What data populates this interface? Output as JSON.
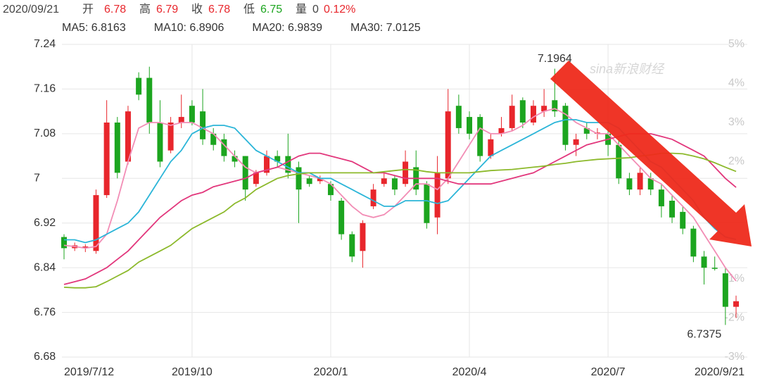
{
  "header": [
    "2020/09/21",
    "开",
    "6.78",
    "高",
    "6.79",
    "收",
    "6.78",
    "低",
    "6.75",
    "量",
    "0",
    "0.12%"
  ],
  "chart_data": {
    "type": "candlestick",
    "watermark": "sina新浪财经",
    "categories": [
      "2019/7/12",
      null,
      null,
      null,
      null,
      null,
      null,
      null,
      null,
      null,
      null,
      null,
      "2019/10",
      null,
      null,
      null,
      null,
      null,
      null,
      null,
      null,
      null,
      null,
      null,
      null,
      "2020/1",
      null,
      null,
      null,
      null,
      null,
      null,
      null,
      null,
      null,
      null,
      null,
      null,
      "2020/4",
      null,
      null,
      null,
      null,
      null,
      null,
      null,
      null,
      null,
      null,
      null,
      null,
      "2020/7",
      null,
      null,
      null,
      null,
      null,
      null,
      null,
      null,
      null,
      null,
      null,
      "2020/9/21"
    ],
    "open": [
      6.895,
      6.875,
      6.875,
      6.87,
      6.97,
      7.1,
      7.03,
      7.18,
      7.18,
      7.1,
      7.05,
      7.1,
      7.13,
      7.12,
      7.08,
      7.07,
      7.04,
      7.04,
      6.99,
      7.01,
      7.04,
      7.04,
      7.02,
      7.0,
      6.995,
      6.99,
      6.96,
      6.9,
      6.87,
      6.95,
      6.99,
      7.0,
      6.99,
      7.02,
      6.99,
      6.93,
      7.0,
      7.13,
      7.11,
      7.11,
      7.04,
      7.08,
      7.09,
      7.14,
      7.1,
      7.12,
      7.14,
      7.13,
      7.06,
      7.09,
      7.08,
      7.08,
      7.06,
      7.0,
      6.98,
      7.0,
      6.98,
      6.96,
      6.94,
      6.91,
      6.86,
      6.84,
      6.83,
      6.77
    ],
    "high": [
      6.9,
      6.885,
      6.882,
      6.98,
      7.14,
      7.11,
      7.13,
      7.19,
      7.2,
      7.14,
      7.11,
      7.15,
      7.14,
      7.16,
      7.09,
      7.08,
      7.05,
      7.04,
      7.015,
      7.05,
      7.05,
      7.08,
      7.03,
      7.005,
      7.005,
      6.995,
      6.965,
      6.905,
      6.925,
      6.99,
      7.01,
      7.005,
      7.05,
      7.05,
      6.995,
      7.04,
      7.16,
      7.15,
      7.12,
      7.115,
      7.08,
      7.11,
      7.15,
      7.145,
      7.14,
      7.16,
      7.1964,
      7.135,
      7.08,
      7.1,
      7.09,
      7.09,
      7.07,
      7.01,
      7.02,
      7.01,
      6.99,
      6.97,
      6.95,
      6.915,
      6.87,
      6.86,
      6.84,
      6.79
    ],
    "low": [
      6.855,
      6.87,
      6.868,
      6.865,
      6.965,
      7.0,
      7.025,
      7.14,
      7.08,
      7.02,
      7.045,
      7.09,
      7.095,
      7.06,
      7.05,
      7.03,
      7.02,
      6.96,
      6.985,
      7.005,
      7.02,
      7.0,
      6.92,
      6.985,
      6.99,
      6.96,
      6.89,
      6.85,
      6.84,
      6.945,
      6.985,
      6.97,
      6.985,
      6.97,
      6.91,
      6.9,
      6.99,
      7.08,
      7.07,
      7.03,
      7.035,
      7.075,
      7.085,
      7.09,
      7.095,
      7.11,
      7.11,
      7.05,
      7.04,
      7.07,
      7.07,
      7.04,
      6.99,
      6.97,
      6.97,
      6.97,
      6.93,
      6.92,
      6.9,
      6.85,
      6.81,
      6.835,
      6.7375,
      6.75
    ],
    "close": [
      6.875,
      6.88,
      6.878,
      6.97,
      7.1,
      7.01,
      7.12,
      7.15,
      7.1,
      7.03,
      7.1,
      7.11,
      7.1,
      7.07,
      7.06,
      7.04,
      7.03,
      6.98,
      7.01,
      7.04,
      7.03,
      7.01,
      6.98,
      6.99,
      7.0,
      6.97,
      6.9,
      6.86,
      6.92,
      6.98,
      7.0,
      6.98,
      7.03,
      6.98,
      6.92,
      7.01,
      7.12,
      7.09,
      7.08,
      7.04,
      7.07,
      7.09,
      7.13,
      7.1,
      7.13,
      7.13,
      7.12,
      7.06,
      7.07,
      7.08,
      7.082,
      7.06,
      7.0,
      6.98,
      7.01,
      6.98,
      6.95,
      6.93,
      6.91,
      6.86,
      6.84,
      6.838,
      6.77,
      6.78
    ],
    "up_color": "#e8262c",
    "down_color": "#1ca51f",
    "series": [
      {
        "name": "MA5: 6.8163",
        "color": "#f28db5",
        "values": [
          6.88,
          6.878,
          6.875,
          6.878,
          6.9,
          6.96,
          7.03,
          7.09,
          7.1,
          7.1,
          7.095,
          7.1,
          7.1,
          7.09,
          7.08,
          7.06,
          7.04,
          7.02,
          7.01,
          7.015,
          7.02,
          7.015,
          7.01,
          7.005,
          7.0,
          6.99,
          6.97,
          6.95,
          6.935,
          6.93,
          6.935,
          6.95,
          6.97,
          6.99,
          6.99,
          6.98,
          7.0,
          7.03,
          7.06,
          7.09,
          7.08,
          7.08,
          7.085,
          7.095,
          7.11,
          7.12,
          7.125,
          7.115,
          7.1,
          7.09,
          7.08,
          7.08,
          7.06,
          7.04,
          7.02,
          7.0,
          6.99,
          6.97,
          6.95,
          6.93,
          6.9,
          6.87,
          6.84,
          6.8163
        ]
      },
      {
        "name": "MA10: 6.8906",
        "color": "#2bb5d8",
        "values": [
          6.89,
          6.89,
          6.885,
          6.89,
          6.9,
          6.91,
          6.92,
          6.94,
          6.97,
          7.0,
          7.03,
          7.05,
          7.08,
          7.09,
          7.095,
          7.095,
          7.09,
          7.07,
          7.05,
          7.04,
          7.03,
          7.02,
          7.01,
          7.01,
          7.0,
          7.0,
          6.99,
          6.98,
          6.97,
          6.96,
          6.95,
          6.95,
          6.96,
          6.96,
          6.96,
          6.955,
          6.96,
          6.98,
          7.0,
          7.02,
          7.04,
          7.05,
          7.06,
          7.07,
          7.08,
          7.09,
          7.1,
          7.105,
          7.105,
          7.1,
          7.1,
          7.1,
          7.09,
          7.07,
          7.05,
          7.03,
          7.02,
          7.0,
          6.98,
          6.96,
          6.93,
          6.91,
          6.895,
          6.8906
        ]
      },
      {
        "name": "MA20: 6.9839",
        "color": "#e2377c",
        "values": [
          6.81,
          6.815,
          6.82,
          6.83,
          6.84,
          6.855,
          6.87,
          6.89,
          6.91,
          6.93,
          6.945,
          6.96,
          6.97,
          6.975,
          6.985,
          6.99,
          6.995,
          7.0,
          7.01,
          7.015,
          7.02,
          7.03,
          7.04,
          7.045,
          7.045,
          7.04,
          7.035,
          7.03,
          7.02,
          7.01,
          7.01,
          7.005,
          7.0,
          7.0,
          7.0,
          7.0,
          6.995,
          6.99,
          6.99,
          6.99,
          6.99,
          6.995,
          7.0,
          7.005,
          7.01,
          7.02,
          7.03,
          7.04,
          7.05,
          7.06,
          7.065,
          7.07,
          7.075,
          7.08,
          7.08,
          7.08,
          7.075,
          7.07,
          7.06,
          7.05,
          7.04,
          7.02,
          7.0,
          6.9839
        ]
      },
      {
        "name": "MA30: 7.0125",
        "color": "#8cb92b",
        "values": [
          6.805,
          6.804,
          6.804,
          6.806,
          6.815,
          6.825,
          6.835,
          6.85,
          6.86,
          6.87,
          6.88,
          6.895,
          6.91,
          6.92,
          6.93,
          6.94,
          6.955,
          6.965,
          6.98,
          6.99,
          7.0,
          7.005,
          7.008,
          7.01,
          7.01,
          7.01,
          7.01,
          7.01,
          7.01,
          7.01,
          7.012,
          7.014,
          7.016,
          7.015,
          7.012,
          7.01,
          7.01,
          7.01,
          7.01,
          7.012,
          7.014,
          7.015,
          7.016,
          7.018,
          7.02,
          7.022,
          7.025,
          7.027,
          7.03,
          7.032,
          7.034,
          7.035,
          7.036,
          7.037,
          7.04,
          7.042,
          7.045,
          7.045,
          7.044,
          7.04,
          7.035,
          7.028,
          7.02,
          7.0125
        ]
      }
    ],
    "annotations": [
      {
        "text": "7.1964",
        "index": 46
      },
      {
        "text": "6.7375",
        "index": 62
      }
    ],
    "ylim": [
      6.68,
      7.24
    ],
    "yticks": [
      {
        "value": 6.68,
        "label": "6.68"
      },
      6.76,
      6.84,
      6.92,
      7,
      7.08,
      7.16,
      7.24
    ],
    "y2lim": [
      -3,
      5
    ],
    "y2ticks": [
      {
        "value": 5,
        "label": "5%"
      },
      {
        "value": 4,
        "label": "4%"
      },
      {
        "value": 3,
        "label": "3%"
      },
      {
        "value": 2,
        "label": "2%"
      },
      {
        "value": -1,
        "label": "-1%"
      },
      {
        "value": -2,
        "label": "-2%"
      },
      {
        "value": -3,
        "label": "-3%"
      }
    ],
    "grid": true
  }
}
